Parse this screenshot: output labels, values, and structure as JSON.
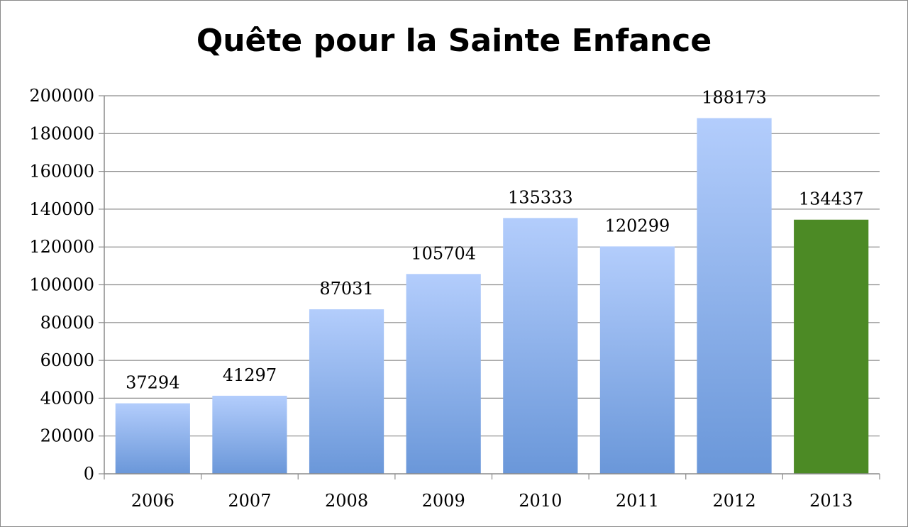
{
  "chart_data": {
    "type": "bar",
    "title": "Quête pour la Sainte Enfance",
    "xlabel": "",
    "ylabel": "",
    "categories": [
      "2006",
      "2007",
      "2008",
      "2009",
      "2010",
      "2011",
      "2012",
      "2013"
    ],
    "values": [
      37294,
      41297,
      87031,
      105704,
      135333,
      120299,
      188173,
      134437
    ],
    "data_labels": [
      "37294",
      "41297",
      "87031",
      "105704",
      "135333",
      "120299",
      "188173",
      "134437"
    ],
    "ylim": [
      0,
      200000
    ],
    "yticks": [
      "0",
      "20000",
      "40000",
      "60000",
      "80000",
      "100000",
      "120000",
      "140000",
      "160000",
      "180000",
      "200000"
    ],
    "grid": true,
    "legend": "none",
    "colors": {
      "bar_top": "#b3cdfc",
      "bar_bottom": "#6a97d9",
      "highlight": "#4c8a25",
      "gridline": "#8c8c8c",
      "axis": "#8c8c8c"
    },
    "highlight_index": 7
  }
}
